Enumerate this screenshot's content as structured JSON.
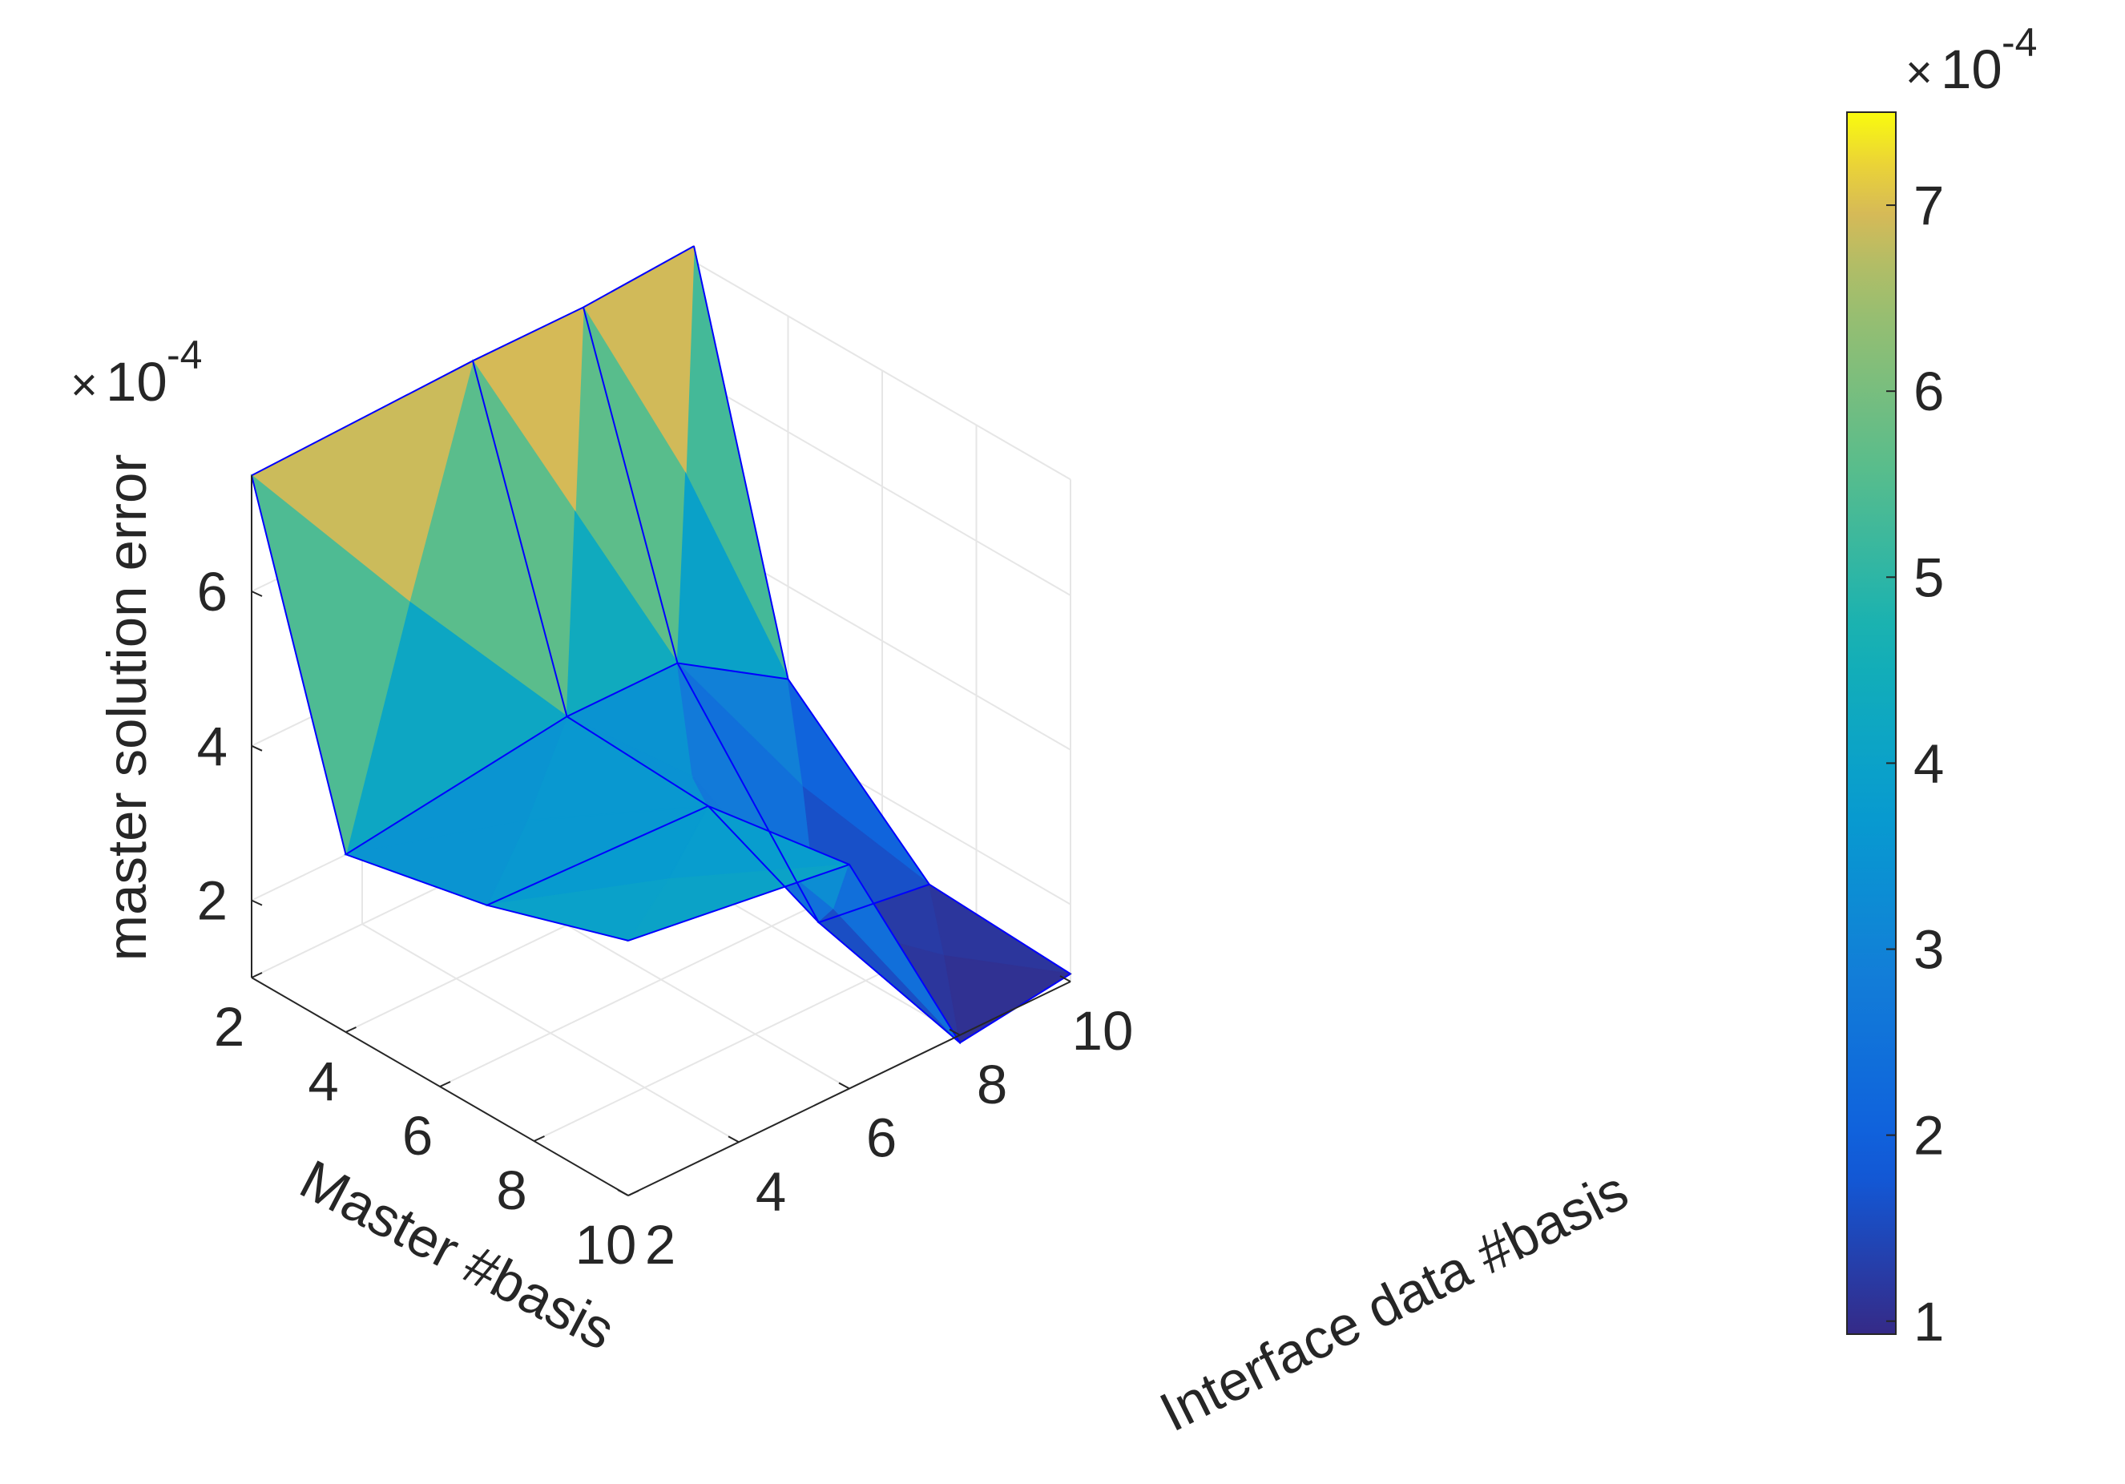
{
  "chart_data": {
    "type": "surface",
    "title": "",
    "axes": {
      "x": {
        "label": "Master #basis",
        "ticks": [
          "2",
          "4",
          "6",
          "8",
          "10"
        ],
        "range": [
          2,
          10
        ]
      },
      "y": {
        "label": "Interface data #basis",
        "ticks": [
          "2",
          "4",
          "6",
          "8",
          "10"
        ],
        "range": [
          2,
          10
        ]
      },
      "z": {
        "label": "master solution error",
        "ticks": [
          "2",
          "4",
          "6"
        ],
        "exponent": "×10-4",
        "range": [
          1,
          7.5
        ]
      }
    },
    "grid": true,
    "edge_color": "#0000ff",
    "colormap": "parula",
    "colorbar": {
      "placement": "right",
      "ticks": [
        "1",
        "2",
        "3",
        "4",
        "5",
        "6",
        "7"
      ],
      "tick_values": [
        1,
        2,
        3,
        4,
        5,
        6,
        7
      ],
      "exponent": "×10-4",
      "range": [
        0.93,
        7.5
      ]
    },
    "x_values": [
      2,
      4,
      7,
      10
    ],
    "y_values": [
      2,
      6,
      8,
      10
    ],
    "z_values_e4": [
      [
        7.5,
        7.6,
        7.6,
        7.7
      ],
      [
        3.3,
        3.7,
        3.7,
        2.8
      ],
      [
        3.7,
        3.6,
        1.4,
        1.2
      ],
      [
        4.3,
        3.9,
        0.9,
        1.1
      ]
    ]
  }
}
